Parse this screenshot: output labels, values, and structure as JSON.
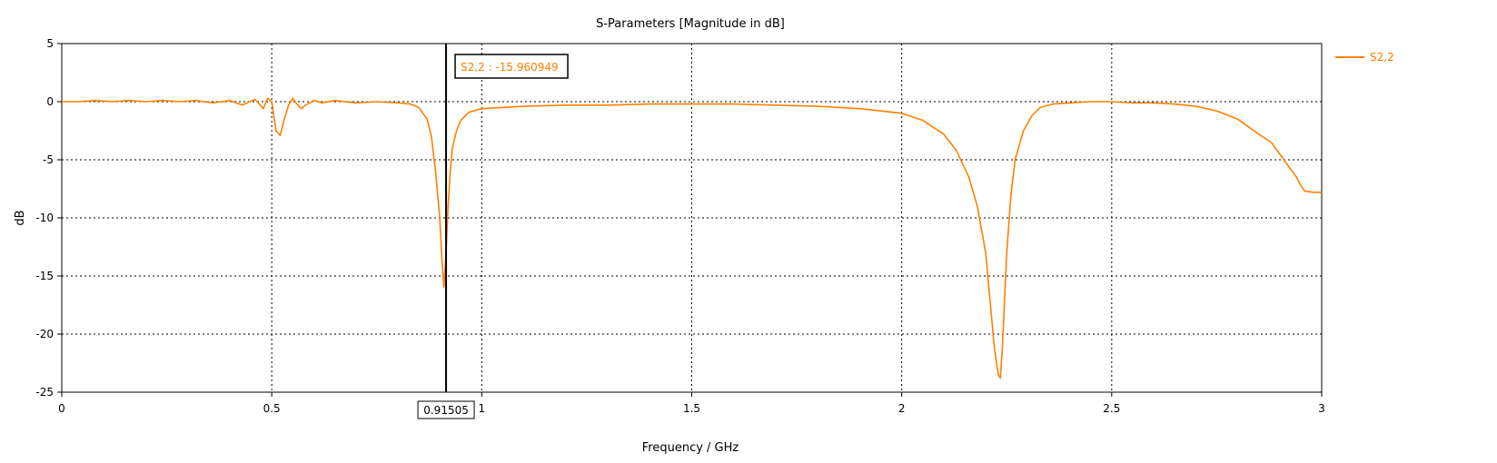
{
  "chart_data": {
    "type": "line",
    "title": "S-Parameters [Magnitude in dB]",
    "xlabel": "Frequency / GHz",
    "ylabel": "dB",
    "xlim": [
      0,
      3
    ],
    "ylim": [
      -25,
      5
    ],
    "xticks": [
      0,
      0.5,
      1,
      1.5,
      2,
      2.5,
      3
    ],
    "xtick_labels": [
      "0",
      "0.5",
      "1",
      "1.5",
      "2",
      "2.5",
      "3"
    ],
    "yticks": [
      5,
      0,
      -5,
      -10,
      -15,
      -20,
      -25
    ],
    "ytick_labels": [
      "5",
      "0",
      "-5",
      "-10",
      "-15",
      "-20",
      "-25"
    ],
    "grid": true,
    "legend_position": "top-right",
    "series": [
      {
        "name": "S2,2",
        "color": "#ff8000",
        "x": [
          0,
          0.04,
          0.08,
          0.12,
          0.16,
          0.2,
          0.24,
          0.28,
          0.32,
          0.36,
          0.4,
          0.43,
          0.46,
          0.48,
          0.49,
          0.5,
          0.51,
          0.52,
          0.53,
          0.54,
          0.55,
          0.56,
          0.57,
          0.58,
          0.6,
          0.62,
          0.65,
          0.7,
          0.75,
          0.8,
          0.83,
          0.85,
          0.87,
          0.88,
          0.89,
          0.9,
          0.905,
          0.91,
          0.915,
          0.92,
          0.925,
          0.93,
          0.94,
          0.95,
          0.97,
          1.0,
          1.05,
          1.1,
          1.2,
          1.3,
          1.4,
          1.5,
          1.6,
          1.7,
          1.8,
          1.9,
          1.95,
          2.0,
          2.05,
          2.1,
          2.13,
          2.16,
          2.18,
          2.2,
          2.21,
          2.22,
          2.23,
          2.235,
          2.24,
          2.245,
          2.25,
          2.26,
          2.27,
          2.29,
          2.31,
          2.33,
          2.36,
          2.4,
          2.45,
          2.5,
          2.55,
          2.6,
          2.65,
          2.7,
          2.75,
          2.8,
          2.85,
          2.88,
          2.9,
          2.92,
          2.94,
          2.95,
          2.96,
          2.98,
          3.0
        ],
        "values": [
          0,
          0,
          0.1,
          0,
          0.1,
          0,
          0.1,
          0,
          0.1,
          -0.1,
          0.1,
          -0.3,
          0.2,
          -0.6,
          0.3,
          0,
          -2.5,
          -2.9,
          -1.5,
          -0.3,
          0.3,
          -0.2,
          -0.6,
          -0.3,
          0.1,
          -0.1,
          0.1,
          -0.1,
          0,
          -0.1,
          -0.2,
          -0.5,
          -1.5,
          -3,
          -6,
          -10,
          -13.5,
          -15.96,
          -13,
          -9,
          -6,
          -4,
          -2.5,
          -1.6,
          -0.9,
          -0.6,
          -0.5,
          -0.4,
          -0.3,
          -0.3,
          -0.2,
          -0.2,
          -0.2,
          -0.3,
          -0.4,
          -0.6,
          -0.8,
          -1.0,
          -1.6,
          -2.8,
          -4.2,
          -6.5,
          -9,
          -13,
          -17,
          -21,
          -23.5,
          -23.8,
          -21,
          -17,
          -13,
          -8,
          -5,
          -2.5,
          -1.2,
          -0.5,
          -0.2,
          -0.1,
          0,
          0,
          -0.1,
          -0.1,
          -0.2,
          -0.4,
          -0.8,
          -1.5,
          -2.8,
          -3.5,
          -4.5,
          -5.5,
          -6.5,
          -7.2,
          -7.7,
          -7.8,
          -7.8
        ]
      }
    ],
    "marker": {
      "x": 0.91505,
      "x_label": "0.91505",
      "readout": "S2,2 : -15.960949"
    }
  }
}
